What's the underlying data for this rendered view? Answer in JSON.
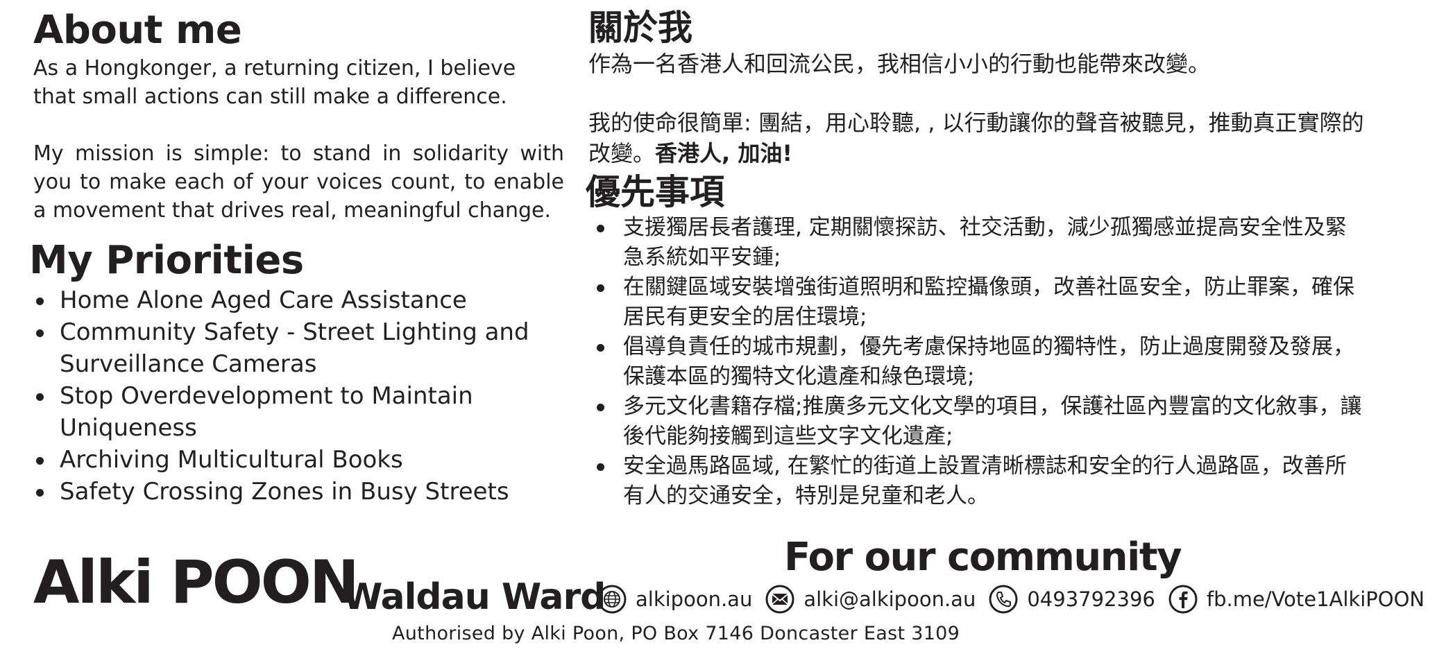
{
  "about_en": {
    "heading": "About me",
    "para1": "As a Hongkonger, a returning citizen, I believe that small actions can still make a difference.",
    "para2": "My mission is simple: to stand in solidarity with you to make each of your voices count, to enable a movement that drives real, meaningful change."
  },
  "priorities_en": {
    "heading": "My Priorities",
    "items": [
      {
        "label": "Home Alone Aged Care Assistance"
      },
      {
        "label": "Community Safety - Street Lighting and Surveillance Cameras"
      },
      {
        "label": "Stop Overdevelopment to Maintain Uniqueness"
      },
      {
        "label": "Archiving Multicultural Books"
      },
      {
        "label": "Safety Crossing Zones in Busy Streets"
      }
    ]
  },
  "about_zh": {
    "heading": "關於我",
    "para1": "作為一名香港人和回流公民，我相信小小的行動也能帶來改變。",
    "para2": "我的使命很簡單: 團結，用心聆聽, , 以行動讓你的聲音被聽見，推動真正實際的改變。",
    "para2_bold": "香港人, 加油!"
  },
  "priorities_zh": {
    "heading": "優先事項",
    "items": [
      {
        "label": "支援獨居長者護理, 定期關懷探訪、社交活動，減少孤獨感並提高安全性及緊急系統如平安鍾;"
      },
      {
        "label": "在關鍵區域安裝增強街道照明和監控攝像頭，改善社區安全，防止罪案，確保居民有更安全的居住環境;"
      },
      {
        "label": "倡導負責任的城市規劃，優先考慮保持地區的獨特性，防止過度開發及發展，保護本區的獨特文化遺產和綠色環境;"
      },
      {
        "label": "多元文化書籍存檔;推廣多元文化文學的項目，保護社區內豐富的文化敘事，讓後代能夠接觸到這些文字文化遺產;"
      },
      {
        "label": "安全過馬路區域, 在繁忙的街道上設置清晰標誌和安全的行人過路區，改善所有人的交通安全，特別是兒童和老人。"
      }
    ]
  },
  "footer": {
    "name": "Alki POON",
    "ward": "Waldau Ward",
    "tagline": "For our community",
    "contacts": {
      "website": {
        "icon": "globe-icon",
        "label": "alkipoon.au"
      },
      "email": {
        "icon": "envelope-icon",
        "label": "alki@alkipoon.au"
      },
      "phone": {
        "icon": "phone-icon",
        "label": "0493792396"
      },
      "facebook": {
        "icon": "facebook-icon",
        "label": "fb.me/Vote1AlkiPOON"
      }
    },
    "authorisation": "Authorised by Alki Poon, PO Box 7146 Doncaster East 3109"
  },
  "colors": {
    "text": "#231f20",
    "background": "#ffffff"
  }
}
